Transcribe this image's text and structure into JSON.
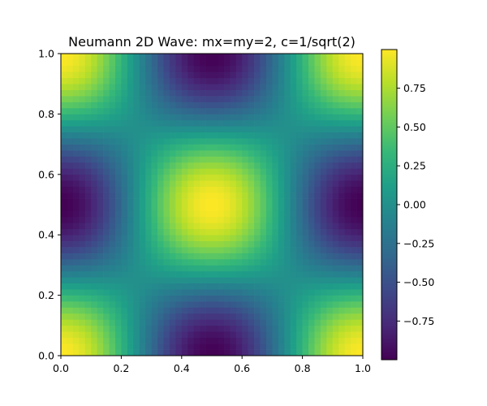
{
  "chart_data": {
    "type": "heatmap",
    "title": "Neumann 2D Wave: mx=my=2, c=1/sqrt(2)",
    "xlabel": "",
    "ylabel": "",
    "xlim": [
      0.0,
      1.0
    ],
    "ylim": [
      0.0,
      1.0
    ],
    "x_ticks": [
      "0.0",
      "0.2",
      "0.4",
      "0.6",
      "0.8",
      "1.0"
    ],
    "y_ticks": [
      "0.0",
      "0.2",
      "0.4",
      "0.6",
      "0.8",
      "1.0"
    ],
    "grid": false,
    "colormap": "viridis",
    "grid_cells": [
      50,
      50
    ],
    "field": "u(x,y) = cos(2πx)·cos(2πy)",
    "mode_x": 2,
    "mode_y": 2,
    "vmin": -0.999,
    "vmax": 0.999,
    "colorbar": {
      "ticks": [
        0.75,
        0.5,
        0.25,
        0.0,
        -0.25,
        -0.5,
        -0.75
      ],
      "tick_labels": [
        "0.75",
        "0.50",
        "0.25",
        "0.00",
        "−0.25",
        "−0.50",
        "−0.75"
      ],
      "range": [
        -0.999,
        0.999
      ]
    }
  },
  "colors": {
    "viridis_stops": [
      "#440154",
      "#482878",
      "#3e4989",
      "#31688e",
      "#26828e",
      "#1f9e89",
      "#35b779",
      "#6ece58",
      "#b5de2b",
      "#fde725"
    ],
    "axis": "#000000",
    "background": "#ffffff"
  }
}
